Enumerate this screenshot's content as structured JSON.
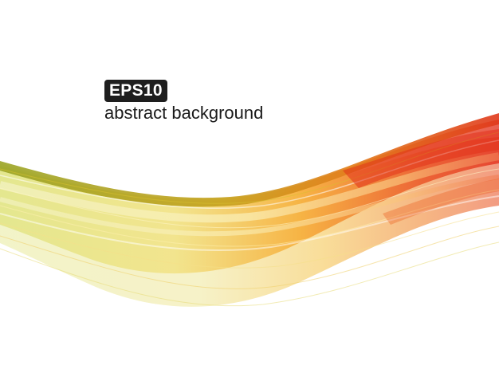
{
  "badge": {
    "label": "EPS10",
    "background": "#1e1e1e",
    "color": "#ffffff"
  },
  "subtitle": {
    "text": "abstract background",
    "color": "#1a1a1a"
  },
  "artwork": {
    "icon": "abstract-wave-graphic",
    "colors": {
      "yellow_green": "#b9c43a",
      "pale_yellow": "#efe38a",
      "orange": "#f39a1d",
      "red": "#e2311a",
      "dark_olive": "#7f8b19"
    }
  }
}
